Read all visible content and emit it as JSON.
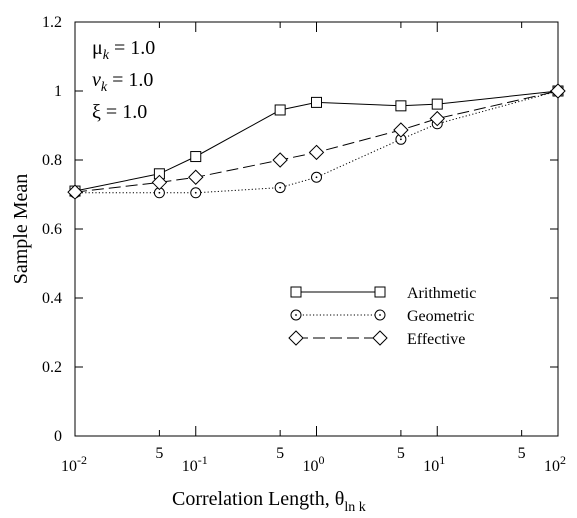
{
  "chart_data": {
    "type": "line",
    "xscale": "log",
    "xlim": [
      0.01,
      100
    ],
    "ylim": [
      0,
      1.2
    ],
    "xlabel": "Correlation Length, θ",
    "xlabel_sub": "ln k",
    "ylabel": "Sample Mean",
    "grid": false,
    "legend_placement": "center-right",
    "y_ticks": [
      {
        "value": 0,
        "label": "0"
      },
      {
        "value": 0.2,
        "label": "0.2"
      },
      {
        "value": 0.4,
        "label": "0.4"
      },
      {
        "value": 0.6,
        "label": "0.6"
      },
      {
        "value": 0.8,
        "label": "0.8"
      },
      {
        "value": 1.0,
        "label": "1"
      },
      {
        "value": 1.2,
        "label": "1.2"
      }
    ],
    "x_major_ticks": [
      {
        "value": 0.01,
        "base": "10",
        "exp": "-2"
      },
      {
        "value": 0.1,
        "base": "10",
        "exp": "-1"
      },
      {
        "value": 1,
        "base": "10",
        "exp": "0"
      },
      {
        "value": 10,
        "base": "10",
        "exp": "1"
      },
      {
        "value": 100,
        "base": "10",
        "exp": "2"
      }
    ],
    "x_minor_ticks": [
      {
        "value": 0.05,
        "label": "5"
      },
      {
        "value": 0.5,
        "label": "5"
      },
      {
        "value": 5,
        "label": "5"
      },
      {
        "value": 50,
        "label": "5"
      }
    ],
    "annotations": [
      {
        "symbol": "μ",
        "sub": "k",
        "text": " = 1.0"
      },
      {
        "symbol": "v",
        "sub": "k",
        "text": " = 1.0"
      },
      {
        "symbol": "ξ",
        "sub": "",
        "text": "   = 1.0"
      }
    ],
    "series": [
      {
        "name": "Arithmetic",
        "marker": "square",
        "dash": "solid",
        "x": [
          0.01,
          0.05,
          0.1,
          0.5,
          1,
          5,
          10,
          100
        ],
        "y": [
          0.71,
          0.76,
          0.81,
          0.945,
          0.967,
          0.957,
          0.962,
          1.0
        ]
      },
      {
        "name": "Geometric",
        "marker": "circle",
        "dash": "dotted",
        "x": [
          0.01,
          0.05,
          0.1,
          0.5,
          1,
          5,
          10,
          100
        ],
        "y": [
          0.705,
          0.705,
          0.705,
          0.72,
          0.75,
          0.86,
          0.905,
          1.0
        ]
      },
      {
        "name": "Effective",
        "marker": "diamond",
        "dash": "dashed",
        "x": [
          0.01,
          0.05,
          0.1,
          0.5,
          1,
          5,
          10,
          100
        ],
        "y": [
          0.707,
          0.735,
          0.75,
          0.8,
          0.822,
          0.887,
          0.92,
          1.0
        ]
      }
    ]
  }
}
